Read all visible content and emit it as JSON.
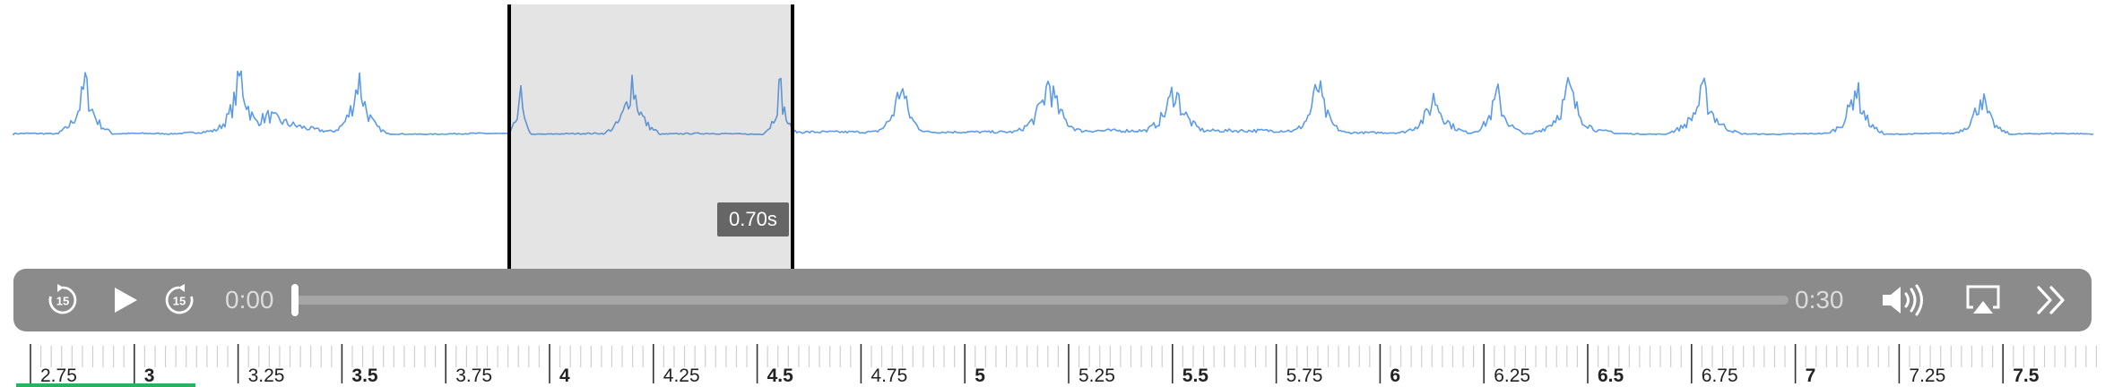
{
  "waveform": {
    "color": "#5b9be8",
    "selection": {
      "duration_label": "0.70s"
    }
  },
  "player": {
    "current_time": "0:00",
    "duration": "0:30",
    "progress": 0,
    "skip_back_label": "15",
    "skip_forward_label": "15",
    "icons": [
      "skip-back-15-icon",
      "play-icon",
      "skip-forward-15-icon",
      "volume-icon",
      "airplay-icon",
      "more-icon"
    ]
  },
  "ruler": {
    "labels": [
      "2.75",
      "3",
      "3.25",
      "3.5",
      "3.75",
      "4",
      "4.25",
      "4.5",
      "4.75",
      "5",
      "5.25",
      "5.5",
      "5.75",
      "6",
      "6.25",
      "6.5",
      "6.75",
      "7",
      "7.25",
      "7.5"
    ]
  }
}
